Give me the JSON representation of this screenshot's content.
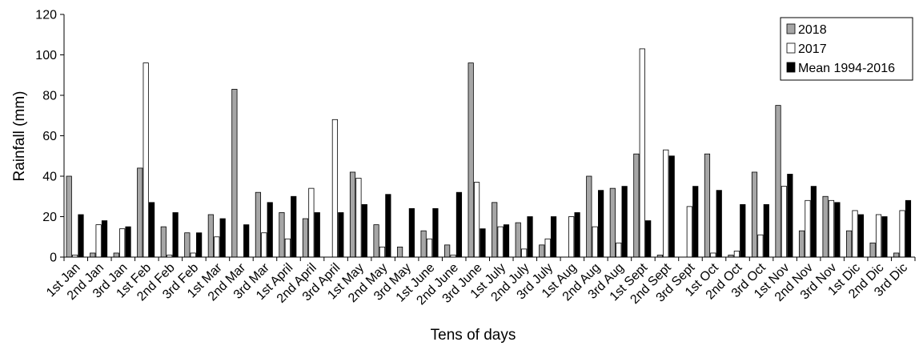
{
  "chart_data": {
    "type": "bar",
    "xlabel": "Tens of days",
    "ylabel": "Rainfall (mm)",
    "ylim": [
      0,
      120
    ],
    "yticks": [
      0,
      20,
      40,
      60,
      80,
      100,
      120
    ],
    "grid": false,
    "legend_position": "top-right",
    "categories": [
      "1st Jan",
      "2nd Jan",
      "3rd Jan",
      "1st Feb",
      "2nd Feb",
      "3rd Feb",
      "1st Mar",
      "2nd Mar",
      "3rd Mar",
      "1st April",
      "2nd April",
      "3rd April",
      "1st May",
      "2nd May",
      "3rd May",
      "1st June",
      "2nd June",
      "3rd June",
      "1st July",
      "2nd July",
      "3rd July",
      "1st Aug",
      "2nd Aug",
      "3rd Aug",
      "1st Sept",
      "2nd Sept",
      "3rd Sept",
      "1st Oct",
      "2nd Oct",
      "3rd Oct",
      "1st Nov",
      "2nd Nov",
      "3rd Nov",
      "1st Dic",
      "2nd Dic",
      "3rd Dic"
    ],
    "series": [
      {
        "name": "2018",
        "color": "#a6a6a6",
        "values": [
          40,
          2,
          2,
          44,
          15,
          12,
          21,
          83,
          32,
          22,
          19,
          0,
          42,
          16,
          5,
          13,
          6,
          96,
          27,
          17,
          6,
          0,
          40,
          34,
          51,
          1,
          0,
          51,
          1,
          42,
          75,
          13,
          30,
          13,
          7,
          2
        ]
      },
      {
        "name": "2017",
        "color": "#ffffff",
        "values": [
          1,
          16,
          14,
          96,
          1,
          2,
          10,
          0,
          12,
          9,
          34,
          68,
          39,
          5,
          0,
          9,
          1,
          37,
          15,
          4,
          9,
          20,
          15,
          7,
          103,
          53,
          25,
          2,
          3,
          11,
          35,
          28,
          28,
          23,
          21,
          23
        ]
      },
      {
        "name": "Mean 1994-2016",
        "color": "#000000",
        "values": [
          21,
          18,
          15,
          27,
          22,
          12,
          19,
          16,
          27,
          30,
          22,
          22,
          26,
          31,
          24,
          24,
          32,
          14,
          16,
          20,
          20,
          22,
          33,
          35,
          18,
          50,
          35,
          33,
          26,
          26,
          41,
          35,
          27,
          21,
          20,
          28
        ]
      }
    ]
  }
}
